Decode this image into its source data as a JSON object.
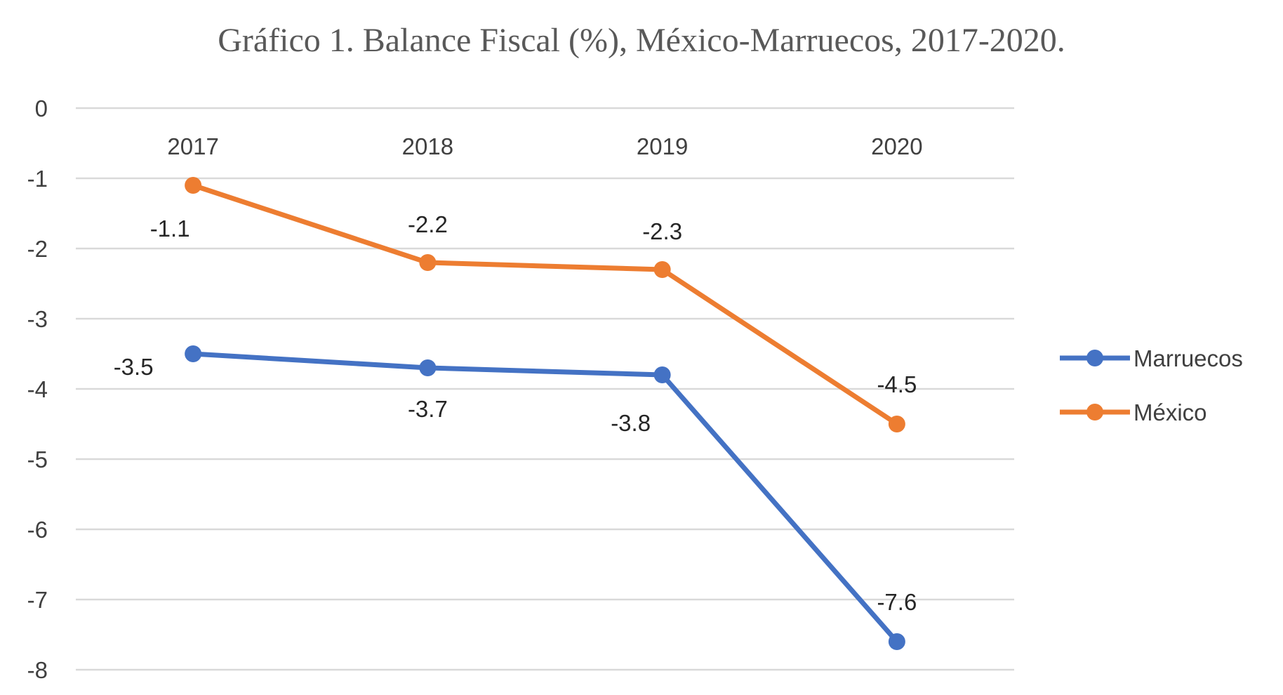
{
  "chart_data": {
    "type": "line",
    "title": "Gráfico 1. Balance Fiscal (%), México-Marruecos, 2017-2020.",
    "xlabel": "",
    "ylabel": "",
    "categories": [
      "2017",
      "2018",
      "2019",
      "2020"
    ],
    "ylim": [
      -8,
      0
    ],
    "yticks": [
      0,
      -1,
      -2,
      -3,
      -4,
      -5,
      -6,
      -7,
      -8
    ],
    "grid": true,
    "legend": "right",
    "series": [
      {
        "name": "Marruecos",
        "values": [
          -3.5,
          -3.7,
          -3.8,
          -7.6
        ],
        "color": "#4472C4",
        "labels": [
          "-3.5",
          "-3.7",
          "-3.8",
          "-7.6"
        ]
      },
      {
        "name": "México",
        "values": [
          -1.1,
          -2.2,
          -2.3,
          -4.5
        ],
        "color": "#ED7D31",
        "labels": [
          "-1.1",
          "-2.2",
          "-2.3",
          "-4.5"
        ]
      }
    ]
  }
}
